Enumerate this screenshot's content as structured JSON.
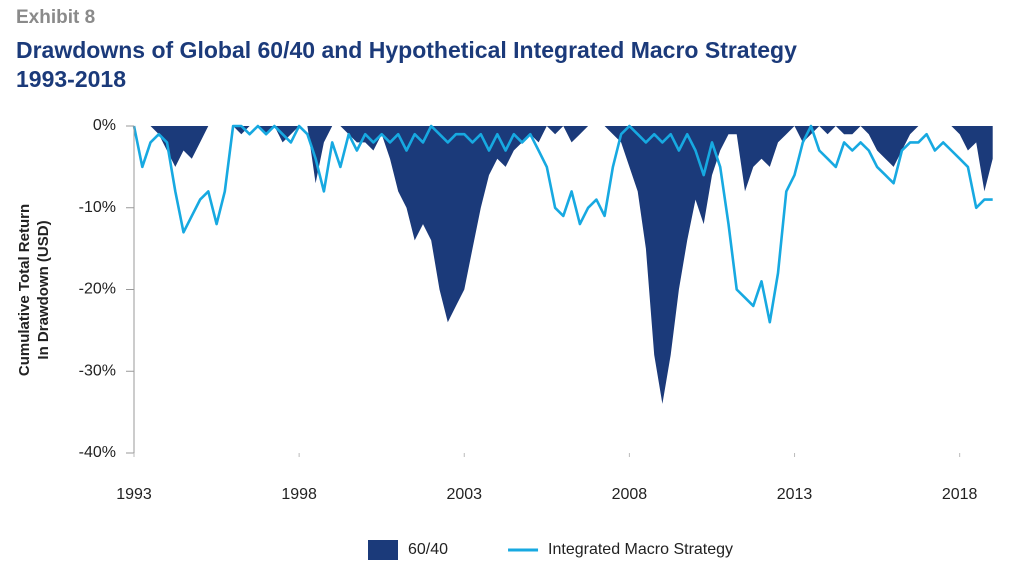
{
  "chart_data": {
    "type": "area-line",
    "exhibit": "Exhibit 8",
    "title": [
      "Drawdowns of Global 60/40 and Hypothetical Integrated Macro Strategy",
      "1993-2018"
    ],
    "y_label": [
      "Cumulative Total Return",
      "In Drawdown (USD)"
    ],
    "x": [
      1993,
      1993.25,
      1993.5,
      1993.75,
      1994,
      1994.25,
      1994.5,
      1994.75,
      1995,
      1995.25,
      1995.5,
      1995.75,
      1996,
      1996.25,
      1996.5,
      1996.75,
      1997,
      1997.25,
      1997.5,
      1997.75,
      1998,
      1998.25,
      1998.5,
      1998.75,
      1999,
      1999.25,
      1999.5,
      1999.75,
      2000,
      2000.25,
      2000.5,
      2000.75,
      2001,
      2001.25,
      2001.5,
      2001.75,
      2002,
      2002.25,
      2002.5,
      2002.75,
      2003,
      2003.25,
      2003.5,
      2003.75,
      2004,
      2004.25,
      2004.5,
      2004.75,
      2005,
      2005.25,
      2005.5,
      2005.75,
      2006,
      2006.25,
      2006.5,
      2006.75,
      2007,
      2007.25,
      2007.5,
      2007.75,
      2008,
      2008.25,
      2008.5,
      2008.75,
      2009,
      2009.25,
      2009.5,
      2009.75,
      2010,
      2010.25,
      2010.5,
      2010.75,
      2011,
      2011.25,
      2011.5,
      2011.75,
      2012,
      2012.25,
      2012.5,
      2012.75,
      2013,
      2013.25,
      2013.5,
      2013.75,
      2014,
      2014.25,
      2014.5,
      2014.75,
      2015,
      2015.25,
      2015.5,
      2015.75,
      2016,
      2016.25,
      2016.5,
      2016.75,
      2017,
      2017.25,
      2017.5,
      2017.75,
      2018,
      2018.25,
      2018.5,
      2018.75,
      2019
    ],
    "series": [
      {
        "name": "60/40",
        "color": "#1b3a7a",
        "style": "area",
        "values": [
          0,
          0,
          0,
          -1,
          -3,
          -5,
          -3,
          -4,
          -2,
          0,
          0,
          0,
          0,
          -1,
          0,
          0,
          -1,
          0,
          -2,
          -1,
          0,
          0,
          -7,
          -2,
          0,
          0,
          -1,
          -2,
          -2,
          -3,
          -1,
          -4,
          -8,
          -10,
          -14,
          -12,
          -14,
          -20,
          -24,
          -22,
          -20,
          -15,
          -10,
          -6,
          -4,
          -5,
          -3,
          -2,
          -1,
          -2,
          0,
          -1,
          0,
          -2,
          -1,
          0,
          0,
          0,
          -1,
          -2,
          -5,
          -8,
          -15,
          -28,
          -34,
          -28,
          -20,
          -14,
          -9,
          -12,
          -6,
          -3,
          -1,
          -1,
          -8,
          -5,
          -4,
          -5,
          -2,
          -1,
          0,
          -2,
          -1,
          0,
          -1,
          0,
          -1,
          -1,
          0,
          -1,
          -3,
          -4,
          -5,
          -3,
          -1,
          0,
          0,
          0,
          0,
          0,
          -1,
          -3,
          -2,
          -8,
          -4
        ]
      },
      {
        "name": "Integrated Macro Strategy",
        "color": "#17a9e1",
        "style": "line",
        "values": [
          0,
          -5,
          -2,
          -1,
          -2,
          -8,
          -13,
          -11,
          -9,
          -8,
          -12,
          -8,
          0,
          0,
          -1,
          0,
          -1,
          0,
          -1,
          -2,
          0,
          -1,
          -4,
          -8,
          -2,
          -5,
          -1,
          -3,
          -1,
          -2,
          -1,
          -2,
          -1,
          -3,
          -1,
          -2,
          0,
          -1,
          -2,
          -1,
          -1,
          -2,
          -1,
          -3,
          -1,
          -3,
          -1,
          -2,
          -1,
          -3,
          -5,
          -10,
          -11,
          -8,
          -12,
          -10,
          -9,
          -11,
          -5,
          -1,
          0,
          -1,
          -2,
          -1,
          -2,
          -1,
          -3,
          -1,
          -3,
          -6,
          -2,
          -5,
          -12,
          -20,
          -21,
          -22,
          -19,
          -24,
          -18,
          -8,
          -6,
          -2,
          0,
          -3,
          -4,
          -5,
          -2,
          -3,
          -2,
          -3,
          -5,
          -6,
          -7,
          -3,
          -2,
          -2,
          -1,
          -3,
          -2,
          -3,
          -4,
          -5,
          -10,
          -9,
          -9
        ]
      }
    ],
    "xlim": [
      1993,
      2019.1
    ],
    "xticks": [
      1993,
      1998,
      2003,
      2008,
      2013,
      2018
    ],
    "ylim": [
      -40,
      0
    ],
    "yticks": [
      {
        "value": 0,
        "label": "0%"
      },
      {
        "value": -10,
        "label": "-10%"
      },
      {
        "value": -20,
        "label": "-20%"
      },
      {
        "value": -30,
        "label": "-30%"
      },
      {
        "value": -40,
        "label": "-40%"
      }
    ],
    "grid": false
  }
}
